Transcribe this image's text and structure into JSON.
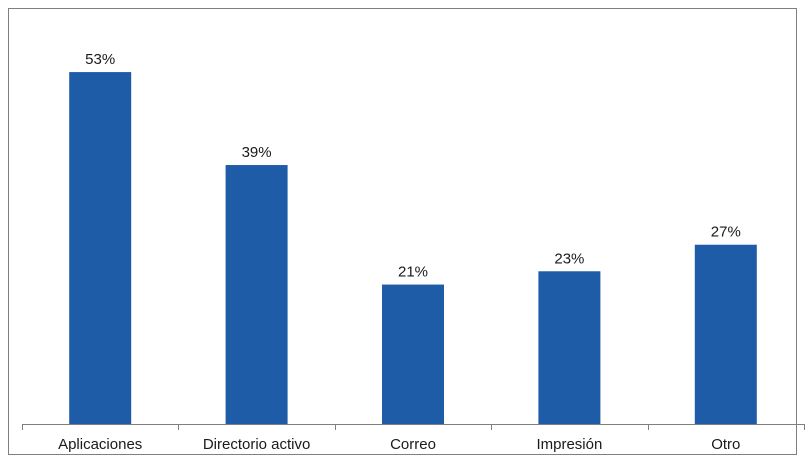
{
  "chart_data": {
    "type": "bar",
    "categories": [
      "Aplicaciones",
      "Directorio activo",
      "Correo",
      "Impresión",
      "Otro"
    ],
    "values": [
      53,
      39,
      21,
      23,
      27
    ],
    "value_labels": [
      "53%",
      "39%",
      "21%",
      "23%",
      "27%"
    ],
    "ylim": [
      0,
      60
    ],
    "grid": false,
    "legend": "none",
    "bar_color": "#1f5ca8",
    "frame_color": "#7f7f7f"
  }
}
